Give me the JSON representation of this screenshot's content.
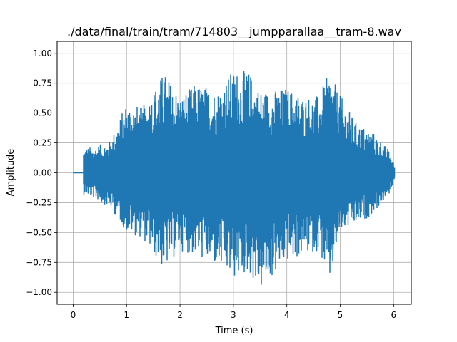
{
  "chart_data": {
    "type": "line",
    "title": "./data/final/train/tram/714803__jumpparallaa__tram-8.wav",
    "xlabel": "Time (s)",
    "ylabel": "Amplitude",
    "xlim": [
      -0.3,
      6.33
    ],
    "ylim": [
      -1.1,
      1.1
    ],
    "grid": true,
    "x_ticks": [
      0,
      1,
      2,
      3,
      4,
      5,
      6
    ],
    "x_tick_labels": [
      "0",
      "1",
      "2",
      "3",
      "4",
      "5",
      "6"
    ],
    "y_ticks": [
      -1.0,
      -0.75,
      -0.5,
      -0.25,
      0.0,
      0.25,
      0.5,
      0.75,
      1.0
    ],
    "y_tick_labels": [
      "−1.00",
      "−0.75",
      "−0.50",
      "−0.25",
      "0.00",
      "0.25",
      "0.50",
      "0.75",
      "1.00"
    ],
    "series": [
      {
        "color": "#1f77b4",
        "duration_s": 6.02,
        "onset_s": 0.19,
        "envelope": {
          "t": [
            0.0,
            0.18,
            0.19,
            0.4,
            0.7,
            1.0,
            1.3,
            1.7,
            2.0,
            2.3,
            2.7,
            3.0,
            3.3,
            3.5,
            3.8,
            4.0,
            4.3,
            4.6,
            4.8,
            5.0,
            5.3,
            5.6,
            5.9,
            6.02
          ],
          "max": [
            0.0,
            0.0,
            0.21,
            0.22,
            0.27,
            0.6,
            0.55,
            0.85,
            0.65,
            0.75,
            0.7,
            0.87,
            0.85,
            0.7,
            0.7,
            0.72,
            0.65,
            0.65,
            0.85,
            0.65,
            0.42,
            0.35,
            0.2,
            0.06
          ],
          "min": [
            0.0,
            0.0,
            -0.18,
            -0.22,
            -0.3,
            -0.5,
            -0.55,
            -0.82,
            -0.65,
            -0.7,
            -0.8,
            -0.9,
            -0.85,
            -1.0,
            -0.85,
            -0.75,
            -0.7,
            -0.65,
            -0.95,
            -0.5,
            -0.45,
            -0.35,
            -0.2,
            -0.06
          ]
        }
      }
    ]
  }
}
